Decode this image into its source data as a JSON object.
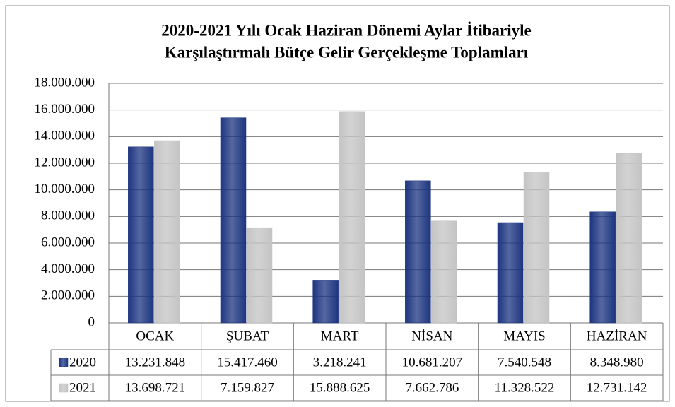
{
  "chart_data": {
    "type": "bar",
    "title": [
      "2020-2021 Yılı Ocak Haziran Dönemi Aylar İtibariyle",
      "Karşılaştırmalı Bütçe Gelir Gerçekleşme Toplamları"
    ],
    "categories": [
      "OCAK",
      "ŞUBAT",
      "MART",
      "NİSAN",
      "MAYIS",
      "HAZİRAN"
    ],
    "series": [
      {
        "name": "2020",
        "color": "#1d3580",
        "values": [
          13231848,
          15417460,
          3218241,
          10681207,
          7540548,
          8348980
        ],
        "value_labels": [
          "13.231.848",
          "15.417.460",
          "3.218.241",
          "10.681.207",
          "7.540.548",
          "8.348.980"
        ]
      },
      {
        "name": "2021",
        "color": "#c4c4c4",
        "values": [
          13698721,
          7159827,
          15888625,
          7662786,
          11328522,
          12731142
        ],
        "value_labels": [
          "13.698.721",
          "7.159.827",
          "15.888.625",
          "7.662.786",
          "11.328.522",
          "12.731.142"
        ]
      }
    ],
    "ylim": [
      0,
      18000000
    ],
    "yticks": [
      0,
      {
        "value": 2000000,
        "label": "2.000.000"
      },
      {
        "value": 4000000,
        "label": "4.000.000"
      },
      {
        "value": 6000000,
        "label": "6.000.000"
      },
      {
        "value": 8000000,
        "label": "8.000.000"
      },
      {
        "value": 10000000,
        "label": "10.000.000"
      },
      {
        "value": 12000000,
        "label": "12.000.000"
      },
      {
        "value": 14000000,
        "label": "14.000.000"
      },
      {
        "value": 16000000,
        "label": "16.000.000"
      },
      {
        "value": 18000000,
        "label": "18.000.000"
      }
    ],
    "grid": true
  }
}
